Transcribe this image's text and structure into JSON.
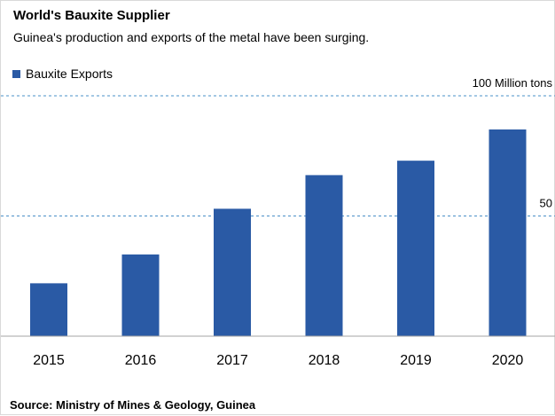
{
  "header": {
    "title": "World's Bauxite Supplier",
    "subtitle": "Guinea's production  and exports of the metal have been surging."
  },
  "legend": {
    "label": "Bauxite Exports"
  },
  "source": "Source: Ministry of Mines & Geology, Guinea",
  "colors": {
    "bar": "#2a5aa5",
    "grid": "#4a90c8",
    "axis": "#a6a6a6"
  },
  "chart_data": {
    "type": "bar",
    "title": "World's Bauxite Supplier",
    "subtitle": "Guinea's production  and exports of the metal have been surging.",
    "categories": [
      "2015",
      "2016",
      "2017",
      "2018",
      "2019",
      "2020"
    ],
    "series": [
      {
        "name": "Bauxite Exports",
        "values": [
          22,
          34,
          53,
          67,
          73,
          86
        ]
      }
    ],
    "ylim": [
      0,
      100
    ],
    "gridlines": [
      {
        "value": 100,
        "label": "100  Million tons"
      },
      {
        "value": 50,
        "label": "50"
      }
    ],
    "xlabel": "",
    "ylabel": "",
    "legend_position": "top-left"
  }
}
